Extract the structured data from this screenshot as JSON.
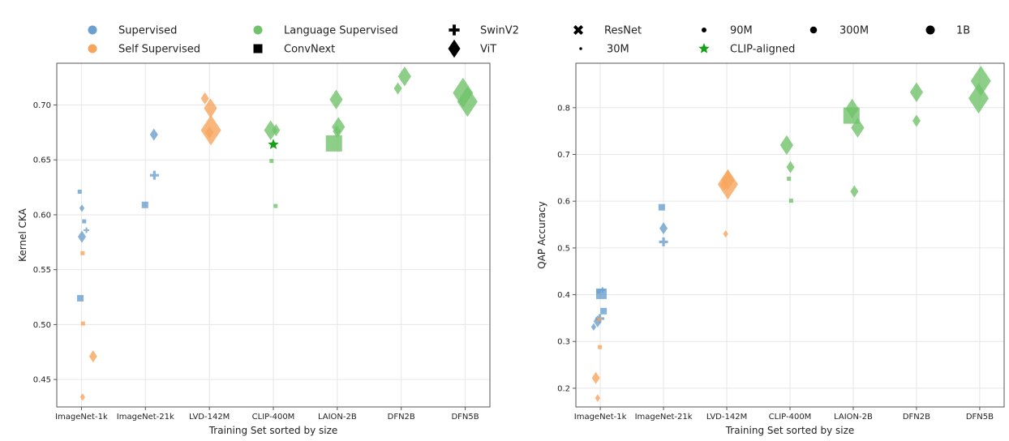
{
  "legend": {
    "colors": [
      {
        "label": "Supervised",
        "color": "#6a9fce"
      },
      {
        "label": "Self Supervised",
        "color": "#f7a55d"
      },
      {
        "label": "Language Supervised",
        "color": "#70c36b"
      }
    ],
    "markers": [
      {
        "label": "ConvNext",
        "icon": "square-icon"
      },
      {
        "label": "SwinV2",
        "icon": "plus-icon"
      },
      {
        "label": "ViT",
        "icon": "diamond-icon"
      },
      {
        "label": "ResNet",
        "icon": "x-icon"
      }
    ],
    "sizes": [
      {
        "label": "30M"
      },
      {
        "label": "90M"
      },
      {
        "label": "300M"
      },
      {
        "label": "1B"
      }
    ],
    "special": {
      "label": "CLIP-aligned",
      "color": "#18a018",
      "icon": "star-icon"
    }
  },
  "chart_data": [
    {
      "type": "scatter",
      "xlabel": "Training Set sorted by size",
      "ylabel": "Kernel CKA",
      "categories": [
        "ImageNet-1k",
        "ImageNet-21k",
        "LVD-142M",
        "CLIP-400M",
        "LAION-2B",
        "DFN2B",
        "DFN5B"
      ],
      "ylim": [
        0.425,
        0.738
      ],
      "yticks": [
        "0.45",
        "0.50",
        "0.55",
        "0.60",
        "0.65",
        "0.70"
      ],
      "grid": true,
      "points": [
        {
          "cat": 0,
          "off": -0.08,
          "y": 0.621,
          "color": "supervised",
          "marker": "square",
          "size": "30M"
        },
        {
          "cat": 0,
          "off": 0.02,
          "y": 0.606,
          "color": "supervised",
          "marker": "diamond",
          "size": "30M"
        },
        {
          "cat": 0,
          "off": 0.12,
          "y": 0.594,
          "color": "supervised",
          "marker": "square",
          "size": "30M"
        },
        {
          "cat": 0,
          "off": 0.22,
          "y": 0.586,
          "color": "supervised",
          "marker": "plus",
          "size": "30M"
        },
        {
          "cat": 0,
          "off": 0.02,
          "y": 0.58,
          "color": "supervised",
          "marker": "diamond",
          "size": "90M"
        },
        {
          "cat": 0,
          "off": -0.05,
          "y": 0.524,
          "color": "supervised",
          "marker": "square",
          "size": "90M"
        },
        {
          "cat": 0,
          "off": 0.05,
          "y": 0.565,
          "color": "self",
          "marker": "square",
          "size": "30M"
        },
        {
          "cat": 0,
          "off": 0.07,
          "y": 0.501,
          "color": "self",
          "marker": "square",
          "size": "30M"
        },
        {
          "cat": 0,
          "off": 0.52,
          "y": 0.471,
          "color": "self",
          "marker": "diamond",
          "size": "90M"
        },
        {
          "cat": 0,
          "off": 0.05,
          "y": 0.434,
          "color": "self",
          "marker": "diamond",
          "size": "30M"
        },
        {
          "cat": 1,
          "off": -0.02,
          "y": 0.609,
          "color": "supervised",
          "marker": "square",
          "size": "90M"
        },
        {
          "cat": 1,
          "off": 0.38,
          "y": 0.673,
          "color": "supervised",
          "marker": "diamond",
          "size": "90M"
        },
        {
          "cat": 1,
          "off": 0.4,
          "y": 0.636,
          "color": "supervised",
          "marker": "plus",
          "size": "90M"
        },
        {
          "cat": 2,
          "off": -0.2,
          "y": 0.706,
          "color": "self",
          "marker": "diamond",
          "size": "90M"
        },
        {
          "cat": 2,
          "off": 0.05,
          "y": 0.697,
          "color": "self",
          "marker": "diamond",
          "size": "300M"
        },
        {
          "cat": 2,
          "off": 0.0,
          "y": 0.675,
          "color": "self",
          "marker": "diamond",
          "size": "90M"
        },
        {
          "cat": 2,
          "off": 0.07,
          "y": 0.677,
          "color": "self",
          "marker": "diamond",
          "size": "1B"
        },
        {
          "cat": 3,
          "off": -0.12,
          "y": 0.677,
          "color": "language",
          "marker": "diamond",
          "size": "300M"
        },
        {
          "cat": 3,
          "off": 0.12,
          "y": 0.677,
          "color": "language",
          "marker": "diamond",
          "size": "90M"
        },
        {
          "cat": 3,
          "off": -0.08,
          "y": 0.649,
          "color": "language",
          "marker": "square",
          "size": "30M"
        },
        {
          "cat": 3,
          "off": 0.1,
          "y": 0.608,
          "color": "language",
          "marker": "square",
          "size": "30M"
        },
        {
          "cat": 4,
          "off": -0.15,
          "y": 0.665,
          "color": "language",
          "marker": "square",
          "size": "1B"
        },
        {
          "cat": 4,
          "off": -0.05,
          "y": 0.705,
          "color": "language",
          "marker": "diamond",
          "size": "300M"
        },
        {
          "cat": 4,
          "off": 0.05,
          "y": 0.68,
          "color": "language",
          "marker": "diamond",
          "size": "300M"
        },
        {
          "cat": 4,
          "off": -0.02,
          "y": 0.676,
          "color": "language",
          "marker": "diamond",
          "size": "90M"
        },
        {
          "cat": 5,
          "off": -0.15,
          "y": 0.715,
          "color": "language",
          "marker": "diamond",
          "size": "90M"
        },
        {
          "cat": 5,
          "off": 0.15,
          "y": 0.726,
          "color": "language",
          "marker": "diamond",
          "size": "300M"
        },
        {
          "cat": 6,
          "off": -0.1,
          "y": 0.711,
          "color": "language",
          "marker": "diamond",
          "size": "1B"
        },
        {
          "cat": 6,
          "off": 0.1,
          "y": 0.703,
          "color": "language",
          "marker": "diamond",
          "size": "1B"
        },
        {
          "cat": 3,
          "off": 0.0,
          "y": 0.664,
          "color": "clip",
          "marker": "star",
          "size": "90M"
        }
      ]
    },
    {
      "type": "scatter",
      "xlabel": "Training Set sorted by size",
      "ylabel": "QAP Accuracy",
      "categories": [
        "ImageNet-1k",
        "ImageNet-21k",
        "LVD-142M",
        "CLIP-400M",
        "LAION-2B",
        "DFN2B",
        "DFN5B"
      ],
      "ylim": [
        0.16,
        0.895
      ],
      "yticks": [
        "0.2",
        "0.3",
        "0.4",
        "0.5",
        "0.6",
        "0.7",
        "0.8"
      ],
      "grid": true,
      "points": [
        {
          "cat": 0,
          "off": -0.3,
          "y": 0.331,
          "color": "supervised",
          "marker": "diamond",
          "size": "30M"
        },
        {
          "cat": 0,
          "off": -0.12,
          "y": 0.343,
          "color": "supervised",
          "marker": "diamond",
          "size": "90M"
        },
        {
          "cat": 0,
          "off": -0.02,
          "y": 0.349,
          "color": "supervised",
          "marker": "plus",
          "size": "90M"
        },
        {
          "cat": 0,
          "off": -0.08,
          "y": 0.407,
          "color": "supervised",
          "marker": "square",
          "size": "30M"
        },
        {
          "cat": 0,
          "off": 0.05,
          "y": 0.402,
          "color": "supervised",
          "marker": "square",
          "size": "300M"
        },
        {
          "cat": 0,
          "off": 0.1,
          "y": 0.41,
          "color": "supervised",
          "marker": "plus",
          "size": "30M"
        },
        {
          "cat": 0,
          "off": 0.15,
          "y": 0.365,
          "color": "supervised",
          "marker": "square",
          "size": "90M"
        },
        {
          "cat": 0,
          "off": -0.05,
          "y": 0.347,
          "color": "self",
          "marker": "x",
          "size": "30M"
        },
        {
          "cat": 0,
          "off": -0.02,
          "y": 0.288,
          "color": "self",
          "marker": "square",
          "size": "30M"
        },
        {
          "cat": 0,
          "off": -0.2,
          "y": 0.222,
          "color": "self",
          "marker": "diamond",
          "size": "90M"
        },
        {
          "cat": 0,
          "off": -0.12,
          "y": 0.179,
          "color": "self",
          "marker": "diamond",
          "size": "30M"
        },
        {
          "cat": 1,
          "off": -0.08,
          "y": 0.587,
          "color": "supervised",
          "marker": "square",
          "size": "90M"
        },
        {
          "cat": 1,
          "off": 0.0,
          "y": 0.542,
          "color": "supervised",
          "marker": "diamond",
          "size": "90M"
        },
        {
          "cat": 1,
          "off": 0.0,
          "y": 0.513,
          "color": "supervised",
          "marker": "plus",
          "size": "90M"
        },
        {
          "cat": 2,
          "off": -0.12,
          "y": 0.635,
          "color": "self",
          "marker": "diamond",
          "size": "90M"
        },
        {
          "cat": 2,
          "off": 0.05,
          "y": 0.645,
          "color": "self",
          "marker": "diamond",
          "size": "300M"
        },
        {
          "cat": 2,
          "off": 0.05,
          "y": 0.636,
          "color": "self",
          "marker": "diamond",
          "size": "1B"
        },
        {
          "cat": 2,
          "off": -0.05,
          "y": 0.53,
          "color": "self",
          "marker": "diamond",
          "size": "30M"
        },
        {
          "cat": 3,
          "off": -0.15,
          "y": 0.72,
          "color": "language",
          "marker": "diamond",
          "size": "300M"
        },
        {
          "cat": 3,
          "off": 0.02,
          "y": 0.673,
          "color": "language",
          "marker": "diamond",
          "size": "90M"
        },
        {
          "cat": 3,
          "off": -0.05,
          "y": 0.648,
          "color": "language",
          "marker": "square",
          "size": "30M"
        },
        {
          "cat": 3,
          "off": 0.05,
          "y": 0.601,
          "color": "language",
          "marker": "square",
          "size": "30M"
        },
        {
          "cat": 4,
          "off": -0.08,
          "y": 0.783,
          "color": "language",
          "marker": "square",
          "size": "1B"
        },
        {
          "cat": 4,
          "off": -0.05,
          "y": 0.798,
          "color": "language",
          "marker": "diamond",
          "size": "300M"
        },
        {
          "cat": 4,
          "off": 0.2,
          "y": 0.757,
          "color": "language",
          "marker": "diamond",
          "size": "300M"
        },
        {
          "cat": 4,
          "off": 0.05,
          "y": 0.621,
          "color": "language",
          "marker": "diamond",
          "size": "90M"
        },
        {
          "cat": 5,
          "off": 0.0,
          "y": 0.833,
          "color": "language",
          "marker": "diamond",
          "size": "300M"
        },
        {
          "cat": 5,
          "off": 0.0,
          "y": 0.772,
          "color": "language",
          "marker": "diamond",
          "size": "90M"
        },
        {
          "cat": 6,
          "off": 0.05,
          "y": 0.857,
          "color": "language",
          "marker": "diamond",
          "size": "1B"
        },
        {
          "cat": 6,
          "off": -0.05,
          "y": 0.82,
          "color": "language",
          "marker": "diamond",
          "size": "1B"
        }
      ]
    }
  ]
}
